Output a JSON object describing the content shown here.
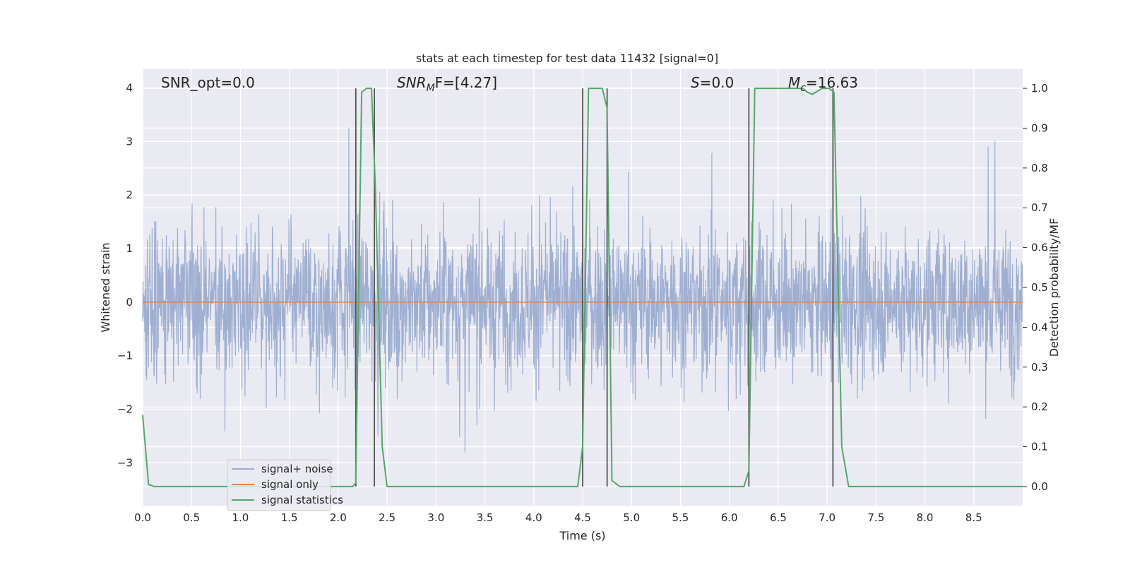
{
  "chart_data": {
    "type": "line",
    "title": "stats at each timestep for test data 11432 [signal=0]",
    "xlabel": "Time (s)",
    "ylabel": "Whitened strain",
    "y2label": "Detection probability/MF",
    "xlim": [
      0.0,
      9.0
    ],
    "ylim": [
      -3.8,
      4.35
    ],
    "y2lim": [
      -0.048,
      1.048
    ],
    "x_ticks": [
      "0.0",
      "0.5",
      "1.0",
      "1.5",
      "2.0",
      "2.5",
      "3.0",
      "3.5",
      "4.0",
      "4.5",
      "5.0",
      "5.5",
      "6.0",
      "6.5",
      "7.0",
      "7.5",
      "8.0",
      "8.5"
    ],
    "y_ticks": [
      "−3",
      "−2",
      "−1",
      "0",
      "1",
      "2",
      "3",
      "4"
    ],
    "y2_ticks": [
      "0.0",
      "0.1",
      "0.2",
      "0.3",
      "0.4",
      "0.5",
      "0.6",
      "0.7",
      "0.8",
      "0.9",
      "1.0"
    ],
    "grid": true,
    "legend_position": "lower-left",
    "annotations": {
      "snr_opt": "SNR_opt=0.0",
      "snr_mf_main": "SNR",
      "snr_mf_sub": "M",
      "snr_mf_rest": "F=[4.27]",
      "s_main": "S",
      "s_rest": "=0.0",
      "mc_main": "M",
      "mc_sub": "c",
      "mc_rest": "=16.63"
    },
    "series": [
      {
        "name": "signal+ noise",
        "color": "#9aacd0",
        "kind": "noise",
        "axis": "left",
        "amplitude": 1.25,
        "x_range": [
          0.0,
          9.0
        ]
      },
      {
        "name": "signal only",
        "color": "#dd8452",
        "axis": "left",
        "x": [
          0.0,
          9.0
        ],
        "values": [
          0.0,
          0.0
        ]
      },
      {
        "name": "signal statistics",
        "color": "#55a868",
        "axis": "right",
        "x": [
          0.0,
          0.06,
          0.12,
          0.25,
          0.5,
          1.0,
          1.5,
          2.0,
          2.15,
          2.18,
          2.2,
          2.24,
          2.29,
          2.34,
          2.38,
          2.45,
          2.5,
          3.0,
          3.5,
          4.0,
          4.45,
          4.5,
          4.56,
          4.7,
          4.75,
          4.8,
          4.88,
          5.0,
          5.5,
          6.0,
          6.15,
          6.2,
          6.26,
          6.5,
          6.75,
          6.8,
          6.85,
          6.95,
          7.02,
          7.07,
          7.15,
          7.22,
          7.5,
          8.0,
          8.5,
          9.0
        ],
        "values": [
          0.18,
          0.005,
          0.0,
          0.0,
          0.0,
          0.0,
          0.0,
          0.0,
          0.0,
          0.01,
          0.35,
          0.99,
          1.0,
          1.0,
          0.75,
          0.1,
          0.0,
          0.0,
          0.0,
          0.0,
          0.0,
          0.1,
          1.0,
          1.0,
          0.95,
          0.015,
          0.0,
          0.0,
          0.0,
          0.0,
          0.0,
          0.04,
          1.0,
          1.0,
          1.0,
          0.99,
          0.985,
          1.0,
          1.0,
          0.99,
          0.1,
          0.0,
          0.0,
          0.0,
          0.0,
          0.0
        ]
      }
    ],
    "vlines": [
      2.18,
      2.37,
      4.5,
      4.75,
      6.2,
      7.06
    ]
  }
}
